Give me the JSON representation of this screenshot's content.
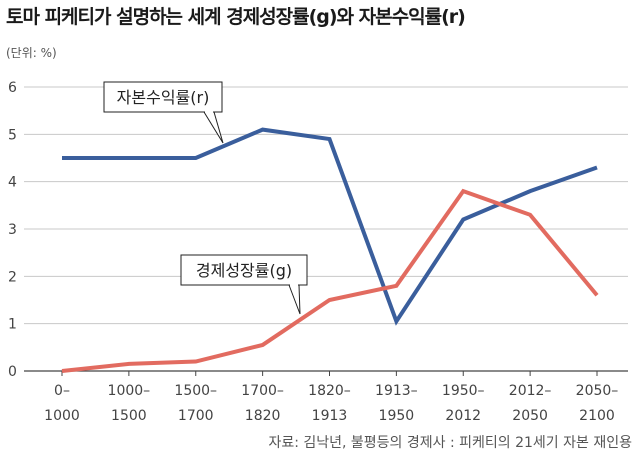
{
  "title": "토마 피케티가 설명하는 세계 경제성장률(g)와 자본수익률(r)",
  "unit_label": "(단위: %)",
  "source": "자료: 김낙년, 불평등의 경제사 : 피케티의 21세기 자본 재인용",
  "colors": {
    "r_series": "#3a5e9c",
    "g_series": "#e26b60",
    "grid": "#c8c8c8",
    "axis": "#444444"
  },
  "chart_data": {
    "type": "line",
    "title": "토마 피케티가 설명하는 세계 경제성장률(g)와 자본수익률(r)",
    "xlabel": "",
    "ylabel": "(단위: %)",
    "ylim": [
      0,
      6
    ],
    "yticks": [
      "0",
      "1",
      "2",
      "3",
      "4",
      "5",
      "6"
    ],
    "grid": true,
    "categories": [
      [
        "0–",
        "1000"
      ],
      [
        "1000–",
        "1500"
      ],
      [
        "1500–",
        "1700"
      ],
      [
        "1700–",
        "1820"
      ],
      [
        "1820–",
        "1913"
      ],
      [
        "1913–",
        "1950"
      ],
      [
        "1950–",
        "2012"
      ],
      [
        "2012–",
        "2050"
      ],
      [
        "2050–",
        "2100"
      ]
    ],
    "series": [
      {
        "name": "자본수익률(r)",
        "values": [
          4.5,
          4.5,
          4.5,
          5.1,
          4.9,
          1.05,
          3.2,
          3.8,
          4.3
        ]
      },
      {
        "name": "경제성장률(g)",
        "values": [
          0.0,
          0.15,
          0.2,
          0.55,
          1.5,
          1.8,
          3.8,
          3.3,
          1.6
        ]
      }
    ]
  }
}
